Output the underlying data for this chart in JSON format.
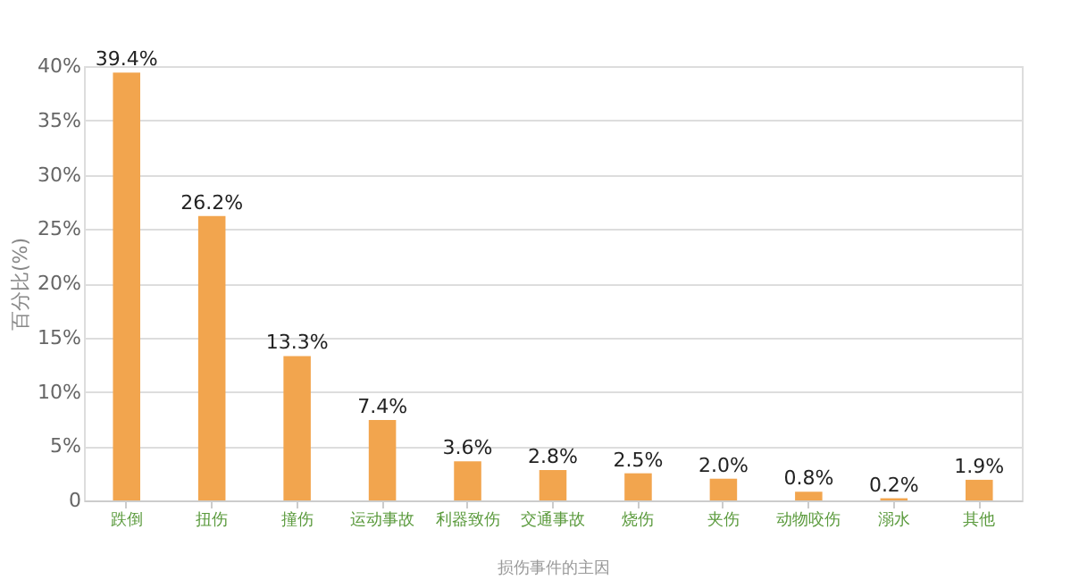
{
  "chart_data": {
    "type": "bar",
    "xlabel": "损伤事件的主因",
    "ylabel": "百分比(%)",
    "categories": [
      "跌倒",
      "扭伤",
      "撞伤",
      "运动事故",
      "利器致伤",
      "交通事故",
      "烧伤",
      "夹伤",
      "动物咬伤",
      "溺水",
      "其他"
    ],
    "values": [
      39.4,
      26.2,
      13.3,
      7.4,
      3.6,
      2.8,
      2.5,
      2.0,
      0.8,
      0.2,
      1.9
    ],
    "value_labels": [
      "39.4%",
      "26.2%",
      "13.3%",
      "7.4%",
      "3.6%",
      "2.8%",
      "2.5%",
      "2.0%",
      "0.8%",
      "0.2%",
      "1.9%"
    ],
    "color": "#f2a54e",
    "ylim": [
      0,
      40
    ],
    "yticks": [
      {
        "value": 0,
        "label": "0"
      },
      {
        "value": 5,
        "label": "5%"
      },
      {
        "value": 10,
        "label": "10%"
      },
      {
        "value": 15,
        "label": "15%"
      },
      {
        "value": 20,
        "label": "20%"
      },
      {
        "value": 25,
        "label": "25%"
      },
      {
        "value": 30,
        "label": "30%"
      },
      {
        "value": 35,
        "label": "35%"
      },
      {
        "value": 40,
        "label": "40%"
      }
    ],
    "grid": "y"
  }
}
